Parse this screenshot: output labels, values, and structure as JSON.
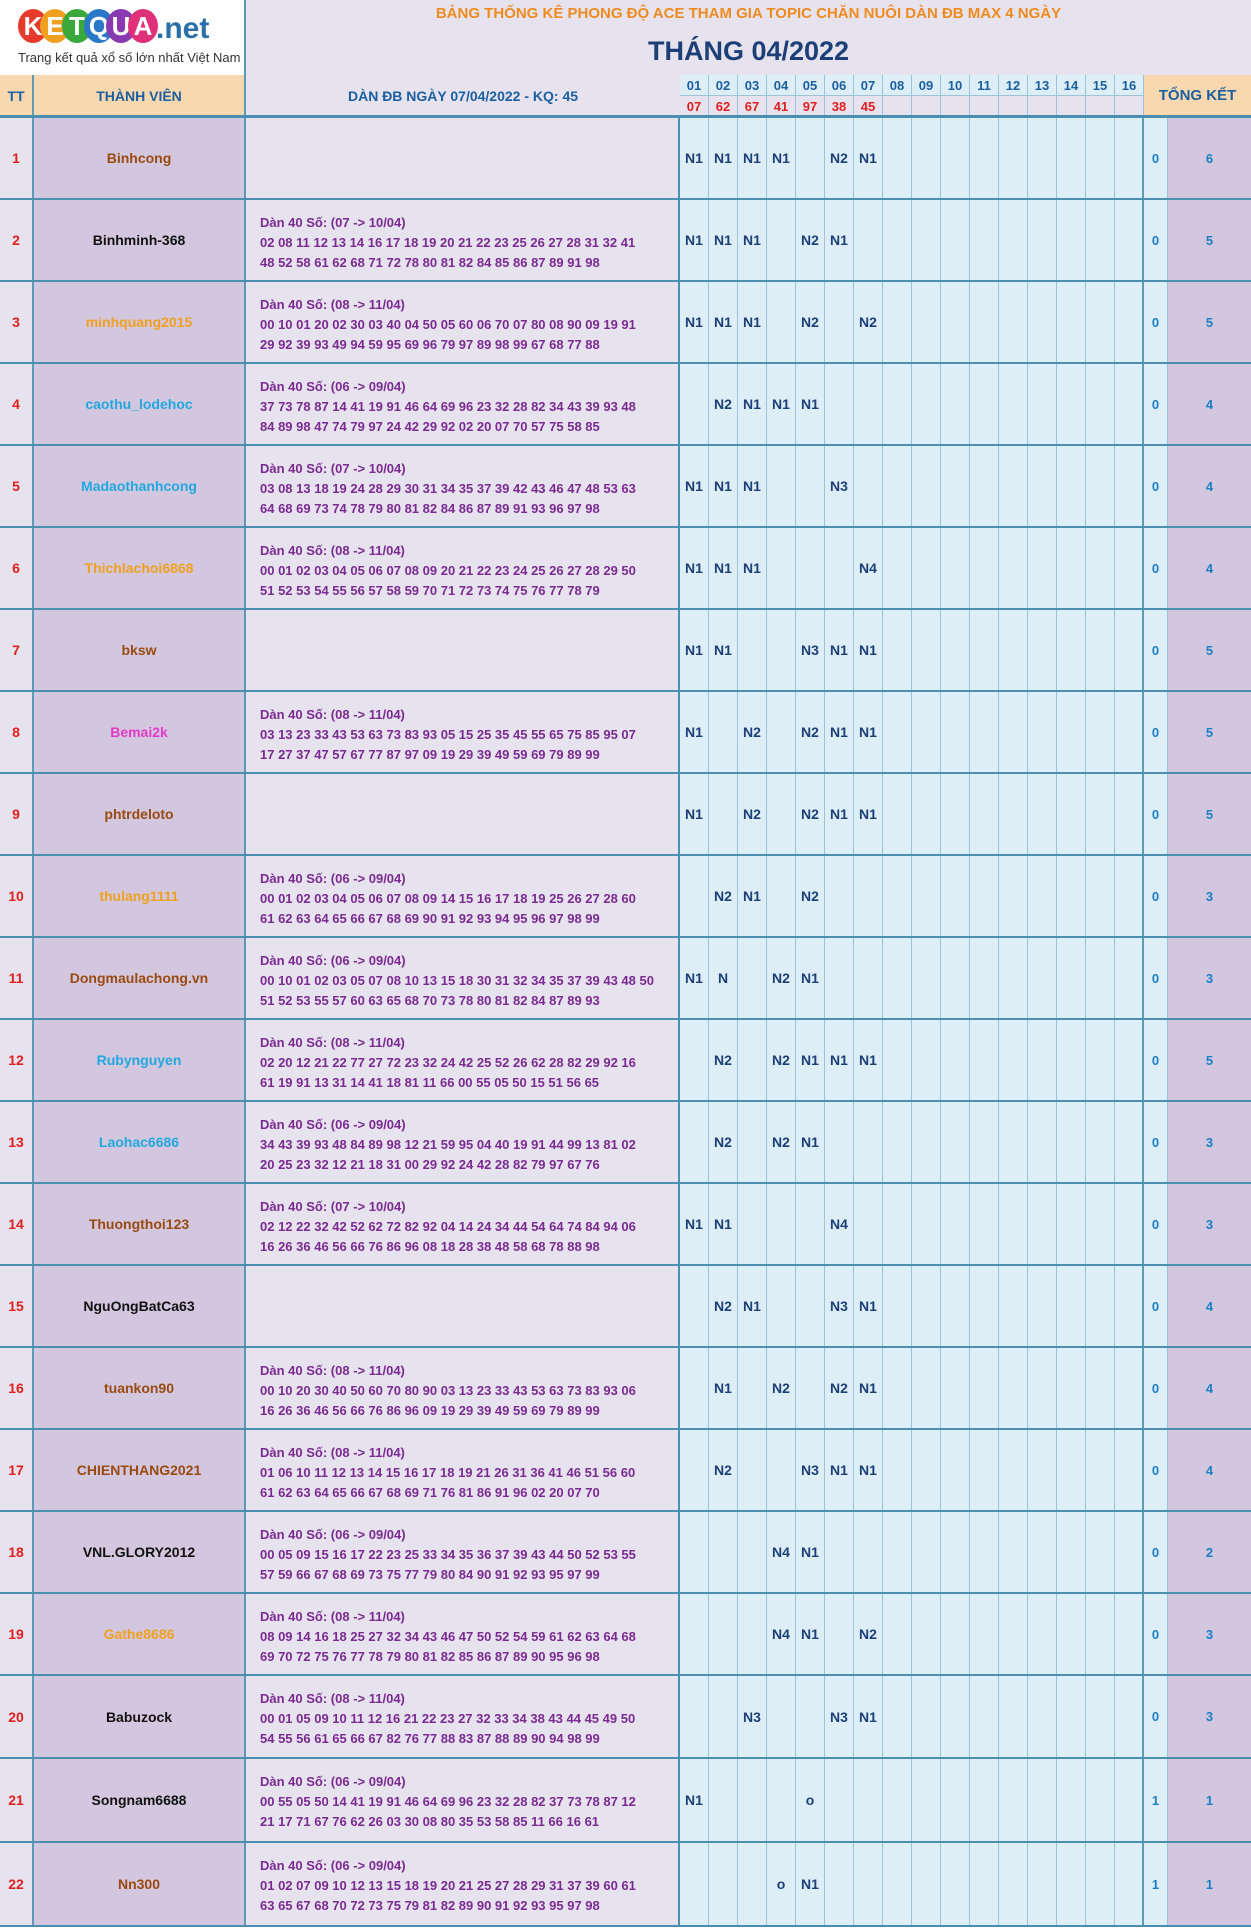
{
  "logo": {
    "letters": [
      "K",
      "E",
      "T",
      "Q",
      "U",
      "A"
    ],
    "letter_colors": [
      "#e53a2c",
      "#f0a020",
      "#3aa83a",
      "#2a78c8",
      "#8a3ab0",
      "#e0307a"
    ],
    "net": ".net",
    "tagline": "Trang kết quả xổ số lớn nhất Việt Nam"
  },
  "title": {
    "main": "BẢNG THỐNG KÊ PHONG ĐỘ ACE THAM GIA TOPIC CHĂN NUÔI DÀN ĐB MAX 4 NGÀY",
    "month": "THÁNG 04/2022"
  },
  "header": {
    "tt": "TT",
    "member": "THÀNH VIÊN",
    "dan": "DÀN ĐB NGÀY 07/04/2022 - KQ: 45",
    "total": "TỔNG KẾT",
    "days": [
      "01",
      "02",
      "03",
      "04",
      "05",
      "06",
      "07",
      "08",
      "09",
      "10",
      "11",
      "12",
      "13",
      "14",
      "15",
      "16"
    ],
    "results": [
      "07",
      "62",
      "67",
      "41",
      "97",
      "38",
      "45",
      "",
      "",
      "",
      "",
      "",
      "",
      "",
      "",
      ""
    ]
  },
  "colors": {
    "brown": "#9a4a10",
    "black": "#111111",
    "orange": "#f0a020",
    "blue": "#22a8e0",
    "pink": "#e23ac8"
  },
  "rows": [
    {
      "tt": "1",
      "name": "Binhcong",
      "color": "brown",
      "dan_head": "",
      "dan_line1": "",
      "dan_line2": "",
      "days": [
        "N1",
        "N1",
        "N1",
        "N1",
        "",
        "N2",
        "N1",
        "",
        "",
        "",
        "",
        "",
        "",
        "",
        "",
        ""
      ],
      "t1": "0",
      "t2": "6"
    },
    {
      "tt": "2",
      "name": "Binhminh-368",
      "color": "black",
      "dan_head": "Dàn 40 Số: (07 -> 10/04)",
      "dan_line1": "02 08 11 12 13 14 16 17 18 19 20 21 22 23 25 26 27 28 31 32 41",
      "dan_line2": "48 52 58 61 62 68 71 72 78 80 81 82 84 85 86 87 89 91 98",
      "days": [
        "N1",
        "N1",
        "N1",
        "",
        "N2",
        "N1",
        "",
        "",
        "",
        "",
        "",
        "",
        "",
        "",
        "",
        ""
      ],
      "t1": "0",
      "t2": "5"
    },
    {
      "tt": "3",
      "name": "minhquang2015",
      "color": "orange",
      "dan_head": "Dàn 40 Số: (08 -> 11/04)",
      "dan_line1": "00 10 01 20 02 30 03 40 04 50 05 60 06 70 07 80 08 90 09 19 91",
      "dan_line2": "29 92 39 93 49 94 59 95 69 96 79 97 89 98 99 67 68 77 88",
      "days": [
        "N1",
        "N1",
        "N1",
        "",
        "N2",
        "",
        "N2",
        "",
        "",
        "",
        "",
        "",
        "",
        "",
        "",
        ""
      ],
      "t1": "0",
      "t2": "5"
    },
    {
      "tt": "4",
      "name": "caothu_lodehoc",
      "color": "blue",
      "dan_head": "Dàn 40 Số: (06 -> 09/04)",
      "dan_line1": "37 73 78 87 14 41 19 91 46 64 69 96 23 32 28 82 34 43 39 93 48",
      "dan_line2": "84 89 98 47 74 79 97 24 42 29 92 02 20 07 70 57 75 58 85",
      "days": [
        "",
        "N2",
        "N1",
        "N1",
        "N1",
        "",
        "",
        "",
        "",
        "",
        "",
        "",
        "",
        "",
        "",
        ""
      ],
      "t1": "0",
      "t2": "4"
    },
    {
      "tt": "5",
      "name": "Madaothanhcong",
      "color": "blue",
      "dan_head": "Dàn 40 Số: (07 -> 10/04)",
      "dan_line1": "03 08 13 18 19 24 28 29 30 31 34 35 37 39 42 43 46 47 48 53 63",
      "dan_line2": "64 68 69 73 74 78 79 80 81 82 84 86 87 89 91 93 96 97 98",
      "days": [
        "N1",
        "N1",
        "N1",
        "",
        "",
        "N3",
        "",
        "",
        "",
        "",
        "",
        "",
        "",
        "",
        "",
        ""
      ],
      "t1": "0",
      "t2": "4"
    },
    {
      "tt": "6",
      "name": "Thichlachoi6868",
      "color": "orange",
      "dan_head": "Dàn 40 Số: (08 -> 11/04)",
      "dan_line1": "00 01 02 03 04 05 06 07 08 09 20 21 22 23 24 25 26 27 28 29 50",
      "dan_line2": "51 52 53 54 55 56 57 58 59 70 71 72 73 74 75 76 77 78 79",
      "days": [
        "N1",
        "N1",
        "N1",
        "",
        "",
        "",
        "N4",
        "",
        "",
        "",
        "",
        "",
        "",
        "",
        "",
        ""
      ],
      "t1": "0",
      "t2": "4"
    },
    {
      "tt": "7",
      "name": "bksw",
      "color": "brown",
      "dan_head": "",
      "dan_line1": "",
      "dan_line2": "",
      "days": [
        "N1",
        "N1",
        "",
        "",
        "N3",
        "N1",
        "N1",
        "",
        "",
        "",
        "",
        "",
        "",
        "",
        "",
        ""
      ],
      "t1": "0",
      "t2": "5"
    },
    {
      "tt": "8",
      "name": "Bemai2k",
      "color": "pink",
      "dan_head": "Dàn 40 Số: (08 -> 11/04)",
      "dan_line1": "03 13 23 33 43 53 63 73 83 93 05 15 25 35 45 55 65 75 85 95 07",
      "dan_line2": "17 27 37 47 57 67 77 87 97 09 19 29 39 49 59 69 79 89 99",
      "days": [
        "N1",
        "",
        "N2",
        "",
        "N2",
        "N1",
        "N1",
        "",
        "",
        "",
        "",
        "",
        "",
        "",
        "",
        ""
      ],
      "t1": "0",
      "t2": "5"
    },
    {
      "tt": "9",
      "name": "phtrdeloto",
      "color": "brown",
      "dan_head": "",
      "dan_line1": "",
      "dan_line2": "",
      "days": [
        "N1",
        "",
        "N2",
        "",
        "N2",
        "N1",
        "N1",
        "",
        "",
        "",
        "",
        "",
        "",
        "",
        "",
        ""
      ],
      "t1": "0",
      "t2": "5"
    },
    {
      "tt": "10",
      "name": "thulang1111",
      "color": "orange",
      "dan_head": "Dàn 40 Số: (06 -> 09/04)",
      "dan_line1": "00 01 02 03 04 05 06 07 08 09 14 15 16 17 18 19 25 26 27 28 60",
      "dan_line2": "61 62 63 64 65 66 67 68 69 90 91 92 93 94 95 96 97 98 99",
      "days": [
        "",
        "N2",
        "N1",
        "",
        "N2",
        "",
        "",
        "",
        "",
        "",
        "",
        "",
        "",
        "",
        "",
        ""
      ],
      "t1": "0",
      "t2": "3"
    },
    {
      "tt": "11",
      "name": "Dongmaulachong.vn",
      "color": "brown",
      "dan_head": "Dàn 40 Số: (06 -> 09/04)",
      "dan_line1": "00 10 01 02 03 05 07 08 10 13 15 18 30 31 32 34 35 37 39 43 48 50",
      "dan_line2": "51 52 53 55 57 60 63 65 68 70 73 78 80 81 82 84 87 89 93",
      "days": [
        "N1",
        "N",
        "",
        "N2",
        "N1",
        "",
        "",
        "",
        "",
        "",
        "",
        "",
        "",
        "",
        "",
        ""
      ],
      "t1": "0",
      "t2": "3"
    },
    {
      "tt": "12",
      "name": "Rubynguyen",
      "color": "blue",
      "dan_head": "Dàn 40 Số: (08 -> 11/04)",
      "dan_line1": "02 20 12 21 22 77 27 72 23 32 24 42 25 52 26 62 28 82 29 92 16",
      "dan_line2": "61 19 91 13 31 14 41 18 81 11 66 00 55 05 50 15 51 56 65",
      "days": [
        "",
        "N2",
        "",
        "N2",
        "N1",
        "N1",
        "N1",
        "",
        "",
        "",
        "",
        "",
        "",
        "",
        "",
        ""
      ],
      "t1": "0",
      "t2": "5"
    },
    {
      "tt": "13",
      "name": "Laohac6686",
      "color": "blue",
      "dan_head": "Dàn 40 Số: (06 -> 09/04)",
      "dan_line1": "34 43 39 93 48 84 89 98 12 21 59 95 04 40 19 91 44 99 13 81 02",
      "dan_line2": "20 25 23 32 12 21 18 31 00 29 92 24 42 28 82 79 97 67 76",
      "days": [
        "",
        "N2",
        "",
        "N2",
        "N1",
        "",
        "",
        "",
        "",
        "",
        "",
        "",
        "",
        "",
        "",
        ""
      ],
      "t1": "0",
      "t2": "3"
    },
    {
      "tt": "14",
      "name": "Thuongthoi123",
      "color": "brown",
      "dan_head": "Dàn 40 Số: (07 -> 10/04)",
      "dan_line1": "02 12 22 32 42 52 62 72 82 92 04 14 24 34 44 54 64 74 84 94 06",
      "dan_line2": "16 26 36 46 56 66 76 86 96 08 18 28 38 48 58 68 78 88 98",
      "days": [
        "N1",
        "N1",
        "",
        "",
        "",
        "N4",
        "",
        "",
        "",
        "",
        "",
        "",
        "",
        "",
        "",
        ""
      ],
      "t1": "0",
      "t2": "3"
    },
    {
      "tt": "15",
      "name": "NguOngBatCa63",
      "color": "black",
      "dan_head": "",
      "dan_line1": "",
      "dan_line2": "",
      "days": [
        "",
        "N2",
        "N1",
        "",
        "",
        "N3",
        "N1",
        "",
        "",
        "",
        "",
        "",
        "",
        "",
        "",
        ""
      ],
      "t1": "0",
      "t2": "4"
    },
    {
      "tt": "16",
      "name": "tuankon90",
      "color": "brown",
      "dan_head": "Dàn 40 Số: (08 -> 11/04)",
      "dan_line1": "00 10 20 30 40 50 60 70 80 90 03 13 23 33 43 53 63 73 83 93 06",
      "dan_line2": "16 26 36 46 56 66 76 86 96 09 19 29 39 49 59 69 79 89 99",
      "days": [
        "",
        "N1",
        "",
        "N2",
        "",
        "N2",
        "N1",
        "",
        "",
        "",
        "",
        "",
        "",
        "",
        "",
        ""
      ],
      "t1": "0",
      "t2": "4"
    },
    {
      "tt": "17",
      "name": "CHIENTHANG2021",
      "color": "brown",
      "dan_head": "Dàn 40 Số: (08 -> 11/04)",
      "dan_line1": "01 06 10 11 12 13 14 15 16 17 18 19 21 26 31 36 41 46 51 56 60",
      "dan_line2": "61 62 63 64 65 66 67 68 69 71 76 81 86 91 96 02 20 07 70",
      "days": [
        "",
        "N2",
        "",
        "",
        "N3",
        "N1",
        "N1",
        "",
        "",
        "",
        "",
        "",
        "",
        "",
        "",
        ""
      ],
      "t1": "0",
      "t2": "4"
    },
    {
      "tt": "18",
      "name": "VNL.GLORY2012",
      "color": "black",
      "dan_head": "Dàn 40 Số: (06 -> 09/04)",
      "dan_line1": "00 05 09 15 16 17 22 23 25 33 34 35 36 37 39 43 44 50 52 53 55",
      "dan_line2": "57 59 66 67 68 69 73 75 77 79 80 84 90 91 92 93 95 97 99",
      "days": [
        "",
        "",
        "",
        "N4",
        "N1",
        "",
        "",
        "",
        "",
        "",
        "",
        "",
        "",
        "",
        "",
        ""
      ],
      "t1": "0",
      "t2": "2"
    },
    {
      "tt": "19",
      "name": "Gathe8686",
      "color": "orange",
      "dan_head": "Dàn 40 Số: (08 -> 11/04)",
      "dan_line1": "08 09 14 16 18 25 27 32 34 43 46 47 50 52 54 59 61 62 63 64 68",
      "dan_line2": "69 70 72 75 76 77 78 79 80 81 82 85 86 87 89 90 95 96 98",
      "days": [
        "",
        "",
        "",
        "N4",
        "N1",
        "",
        "N2",
        "",
        "",
        "",
        "",
        "",
        "",
        "",
        "",
        ""
      ],
      "t1": "0",
      "t2": "3"
    },
    {
      "tt": "20",
      "name": "Babuzock",
      "color": "black",
      "dan_head": "Dàn 40 Số: (08 -> 11/04)",
      "dan_line1": "00 01 05 09 10 11 12 16 21 22 23 27 32 33 34 38 43 44 45 49 50",
      "dan_line2": "54 55 56 61 65 66 67 82 76 77 88 83 87 88 89 90 94 98 99",
      "days": [
        "",
        "",
        "N3",
        "",
        "",
        "N3",
        "N1",
        "",
        "",
        "",
        "",
        "",
        "",
        "",
        "",
        ""
      ],
      "t1": "0",
      "t2": "3"
    },
    {
      "tt": "21",
      "name": "Songnam6688",
      "color": "black",
      "dan_head": "Dàn 40 Số: (06 -> 09/04)",
      "dan_line1": "00 55 05 50 14 41 19 91 46 64 69 96 23 32 28 82 37 73 78 87 12",
      "dan_line2": "21 17 71 67 76 62 26 03 30 08 80 35 53 58 85 11 66 16 61",
      "days": [
        "N1",
        "",
        "",
        "",
        "o",
        "",
        "",
        "",
        "",
        "",
        "",
        "",
        "",
        "",
        "",
        ""
      ],
      "t1": "1",
      "t2": "1"
    },
    {
      "tt": "22",
      "name": "Nn300",
      "color": "brown",
      "dan_head": "Dàn 40 Số: (06 -> 09/04)",
      "dan_line1": "01 02 07 09 10 12 13 15 18 19 20 21 25 27 28 29 31 37 39 60 61",
      "dan_line2": "63 65 67 68 70 72 73 75 79 81 82 89 90 91 92 93 95 97 98",
      "days": [
        "",
        "",
        "",
        "o",
        "N1",
        "",
        "",
        "",
        "",
        "",
        "",
        "",
        "",
        "",
        "",
        ""
      ],
      "t1": "1",
      "t2": "1"
    }
  ]
}
